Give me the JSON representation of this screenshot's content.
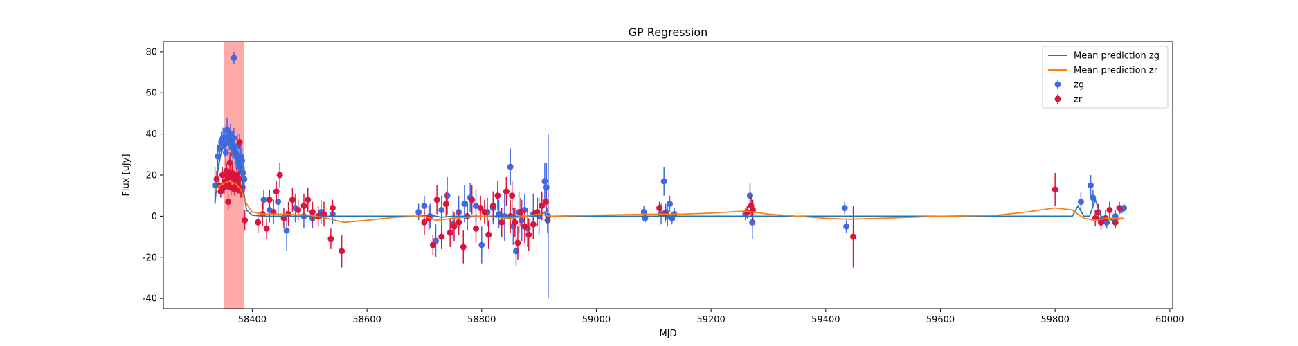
{
  "chart_data": {
    "type": "scatter",
    "title": "GP Regression",
    "xlabel": "MJD",
    "ylabel": "Flux [uJy]",
    "xlim": [
      58245,
      60005
    ],
    "ylim": [
      -45,
      85
    ],
    "xticks": [
      58400,
      58600,
      58800,
      59000,
      59200,
      59400,
      59600,
      59800,
      60000
    ],
    "yticks": [
      -40,
      -20,
      0,
      20,
      40,
      60,
      80
    ],
    "grid": false,
    "legend_placement": "top-right",
    "highlight_band": {
      "x_start": 58350,
      "x_end": 58386,
      "color": "#ff9a9a"
    },
    "colors": {
      "mean_zg": "#1f77b4",
      "mean_zr": "#ff7f0e",
      "points_zg": "#4169e1",
      "points_zr": "#dc143c"
    },
    "legend": {
      "items": [
        {
          "label": "Mean prediction zg",
          "kind": "line",
          "color": "#1f77b4"
        },
        {
          "label": "Mean prediction zr",
          "kind": "line",
          "color": "#ff7f0e"
        },
        {
          "label": "zg",
          "kind": "errorbar",
          "color": "#4169e1"
        },
        {
          "label": "zr",
          "kind": "errorbar",
          "color": "#dc143c"
        }
      ]
    },
    "series": [
      {
        "name": "Mean prediction zg",
        "kind": "line",
        "x": [
          58335,
          58340,
          58345,
          58350,
          58355,
          58360,
          58365,
          58370,
          58375,
          58380,
          58385,
          58390,
          58400,
          58420,
          58500,
          58600,
          58690,
          58710,
          58730,
          58750,
          58800,
          58850,
          58900,
          58910,
          58915,
          58920,
          59000,
          59080,
          59100,
          59120,
          59140,
          59200,
          59270,
          59300,
          59430,
          59440,
          59500,
          59700,
          59830,
          59840,
          59850,
          59860,
          59870,
          59880,
          59900,
          59920
        ],
        "y": [
          6,
          22,
          30,
          34,
          36,
          38,
          36,
          32,
          28,
          22,
          12,
          3,
          0.5,
          0,
          0,
          0,
          0,
          0.5,
          -0.5,
          0,
          0,
          0,
          0,
          2,
          -4,
          0,
          0,
          0,
          0,
          0,
          0,
          0,
          0,
          0,
          0,
          0,
          0,
          0,
          0,
          5,
          0,
          0,
          8,
          0,
          -2,
          -1
        ]
      },
      {
        "name": "Mean prediction zr",
        "kind": "line",
        "x": [
          58335,
          58340,
          58350,
          58360,
          58370,
          58380,
          58390,
          58400,
          58420,
          58450,
          58500,
          58530,
          58560,
          58600,
          58650,
          58700,
          58720,
          58750,
          58800,
          58850,
          58900,
          58920,
          59000,
          59100,
          59150,
          59200,
          59260,
          59300,
          59350,
          59400,
          59440,
          59500,
          59600,
          59700,
          59750,
          59800,
          59830,
          59850,
          59870,
          59890,
          59920
        ],
        "y": [
          12,
          14,
          16,
          17,
          16,
          13,
          6,
          2,
          1,
          1,
          0.5,
          -1,
          -3,
          -2,
          -0.5,
          0,
          -2,
          -1,
          0,
          -1,
          1,
          0,
          0.5,
          1,
          1,
          1.5,
          2.5,
          1,
          0,
          -1,
          -1.5,
          -1,
          0,
          0.5,
          2,
          4,
          3,
          -1,
          -2,
          -1,
          -1
        ]
      },
      {
        "name": "zg",
        "kind": "errorbar",
        "x": [
          58335,
          58340,
          58343,
          58346,
          58349,
          58352,
          58354,
          58356,
          58358,
          58360,
          58362,
          58364,
          58366,
          58368,
          58370,
          58372,
          58374,
          58376,
          58378,
          58380,
          58382,
          58384,
          58386,
          58368,
          58420,
          58430,
          58445,
          58460,
          58475,
          58490,
          58505,
          58520,
          58540,
          58690,
          58700,
          58710,
          58720,
          58730,
          58740,
          58750,
          58760,
          58770,
          58780,
          58790,
          58800,
          58810,
          58820,
          58830,
          58840,
          58850,
          58855,
          58860,
          58865,
          58870,
          58875,
          58880,
          58890,
          58900,
          58910,
          58913,
          58916,
          59083,
          59085,
          59113,
          59118,
          59121,
          59124,
          59128,
          59132,
          59136,
          59260,
          59268,
          59272,
          59433,
          59436,
          59845,
          59862,
          59866,
          59880,
          59890,
          59905,
          59915,
          59920
        ],
        "y": [
          15,
          29,
          33,
          36,
          38,
          35,
          31,
          42,
          39,
          37,
          40,
          35,
          33,
          38,
          31,
          29,
          34,
          26,
          24,
          29,
          27,
          21,
          18,
          77,
          8,
          3,
          7,
          -7,
          4,
          0,
          -1,
          2,
          1,
          2,
          5,
          0,
          -12,
          3,
          10,
          -4,
          2,
          6,
          9,
          5,
          -14,
          2,
          4,
          1,
          0,
          24,
          -5,
          -17,
          2,
          -2,
          3,
          -6,
          1,
          0,
          17,
          14,
          0,
          2,
          -1,
          1,
          17,
          2,
          0,
          6,
          -1,
          1,
          1,
          10,
          -3,
          4,
          -5,
          7,
          15,
          9,
          -2,
          -3,
          0,
          3,
          4
        ],
        "err": [
          9,
          6,
          5,
          5,
          5,
          6,
          7,
          6,
          5,
          5,
          5,
          6,
          6,
          5,
          6,
          6,
          6,
          6,
          7,
          7,
          6,
          6,
          6,
          3,
          5,
          6,
          7,
          10,
          7,
          6,
          5,
          6,
          5,
          4,
          5,
          6,
          8,
          7,
          9,
          7,
          8,
          9,
          7,
          8,
          9,
          7,
          8,
          7,
          12,
          9,
          9,
          7,
          10,
          10,
          8,
          9,
          10,
          9,
          9,
          12,
          40,
          3,
          2,
          5,
          7,
          4,
          5,
          4,
          3,
          3,
          3,
          6,
          8,
          3,
          3,
          5,
          5,
          4,
          3,
          3,
          3,
          2,
          2
        ]
      },
      {
        "name": "zr",
        "kind": "errorbar",
        "x": [
          58338,
          58342,
          58345,
          58348,
          58351,
          58353,
          58355,
          58357,
          58359,
          58361,
          58363,
          58365,
          58367,
          58369,
          58371,
          58373,
          58375,
          58377,
          58379,
          58381,
          58383,
          58358,
          58378,
          58387,
          58410,
          58418,
          58425,
          58430,
          58437,
          58442,
          58448,
          58455,
          58463,
          58470,
          58480,
          58490,
          58497,
          58505,
          58515,
          58525,
          58537,
          58540,
          58556,
          58700,
          58708,
          58715,
          58722,
          58730,
          58738,
          58745,
          58752,
          58760,
          58768,
          58775,
          58783,
          58790,
          58798,
          58805,
          58812,
          58820,
          58828,
          58835,
          58843,
          58850,
          58853,
          58858,
          58863,
          58868,
          58875,
          58882,
          58890,
          58897,
          58905,
          58912,
          58915,
          59110,
          59120,
          59263,
          59270,
          59273,
          59448,
          59800,
          59870,
          59875,
          59880,
          59888,
          59895,
          59905,
          59912
        ],
        "y": [
          18,
          15,
          12,
          20,
          14,
          17,
          22,
          16,
          19,
          26,
          14,
          21,
          18,
          13,
          17,
          20,
          15,
          18,
          13,
          12,
          14,
          7,
          36,
          -2,
          -3,
          1,
          -6,
          8,
          2,
          12,
          20,
          -1,
          1,
          8,
          3,
          5,
          8,
          2,
          0,
          1,
          -11,
          4,
          -17,
          -3,
          -1,
          -14,
          8,
          -10,
          6,
          -8,
          -5,
          -3,
          -15,
          0,
          8,
          -6,
          4,
          2,
          -9,
          5,
          10,
          -3,
          12,
          0,
          10,
          -3,
          -13,
          2,
          -5,
          -9,
          -4,
          2,
          5,
          7,
          -2,
          4,
          1,
          2,
          5,
          3,
          -10,
          13,
          -1,
          2,
          -3,
          -1,
          3,
          -3,
          4
        ],
        "err": [
          4,
          4,
          3,
          4,
          3,
          4,
          4,
          3,
          4,
          5,
          4,
          4,
          4,
          3,
          4,
          4,
          4,
          4,
          4,
          3,
          4,
          4,
          4,
          5,
          5,
          6,
          5,
          5,
          6,
          5,
          6,
          5,
          6,
          6,
          5,
          6,
          6,
          5,
          5,
          6,
          5,
          4,
          8,
          6,
          6,
          5,
          7,
          6,
          6,
          7,
          7,
          6,
          8,
          7,
          7,
          7,
          6,
          6,
          7,
          7,
          7,
          7,
          7,
          8,
          7,
          7,
          8,
          7,
          8,
          8,
          7,
          7,
          7,
          6,
          6,
          3,
          4,
          3,
          5,
          5,
          15,
          8,
          4,
          4,
          4,
          4,
          4,
          3,
          3
        ]
      }
    ]
  }
}
